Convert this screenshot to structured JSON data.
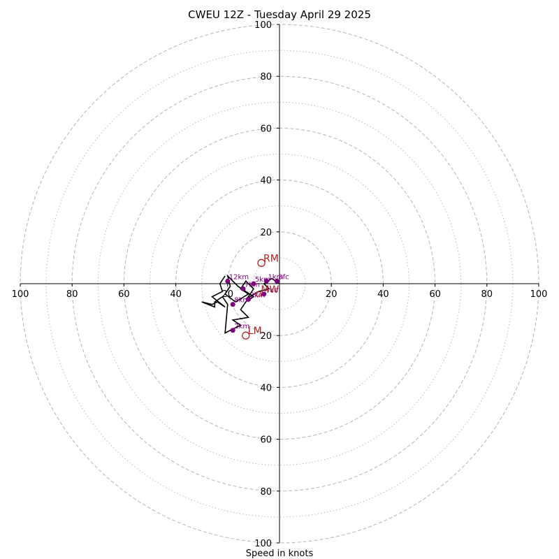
{
  "chart_data": {
    "type": "scatter",
    "subtype": "hodograph",
    "title": "CWEU 12Z - Tuesday April 29 2025",
    "xlabel": "Speed in knots",
    "range": [
      -100,
      100
    ],
    "major_rings": [
      20,
      40,
      60,
      80,
      100
    ],
    "minor_rings": [
      10,
      30,
      50,
      70,
      90
    ],
    "x_tick_labels": [
      "100",
      "80",
      "60",
      "40",
      "20",
      "20",
      "40",
      "60",
      "80",
      "100"
    ],
    "y_tick_labels": [
      "100",
      "80",
      "60",
      "40",
      "20",
      "20",
      "40",
      "60",
      "80",
      "100"
    ],
    "x_ticks": [
      -100,
      -80,
      -60,
      -40,
      -20,
      20,
      40,
      60,
      80,
      100
    ],
    "y_ticks": [
      100,
      80,
      60,
      40,
      20,
      -20,
      -40,
      -60,
      -80,
      -100
    ],
    "grid": true,
    "hodograph_trace": [
      [
        0,
        0
      ],
      [
        -3,
        2
      ],
      [
        -6,
        0
      ],
      [
        -4,
        -2
      ],
      [
        -8,
        -3
      ],
      [
        -13,
        -6
      ],
      [
        -12,
        -5
      ],
      [
        -10,
        -2
      ],
      [
        -13,
        1
      ],
      [
        -15,
        -2
      ],
      [
        -12,
        -4
      ],
      [
        -17,
        -7
      ],
      [
        -21,
        -4
      ],
      [
        -19,
        -1
      ],
      [
        -20,
        3
      ],
      [
        -16,
        -1
      ],
      [
        -10,
        -5
      ],
      [
        -13,
        -7
      ],
      [
        -15,
        -10
      ],
      [
        -12,
        -13
      ],
      [
        -18,
        -14
      ],
      [
        -15,
        -16
      ],
      [
        -21,
        -19
      ],
      [
        -20,
        -8
      ],
      [
        -22,
        -5
      ],
      [
        -25,
        -7
      ],
      [
        -25,
        -9
      ],
      [
        -30,
        -7
      ],
      [
        -26,
        -8
      ],
      [
        -24,
        -7
      ],
      [
        -21,
        -9
      ],
      [
        -26,
        -5
      ],
      [
        -22,
        -3
      ],
      [
        -23,
        0
      ],
      [
        -21,
        3
      ]
    ],
    "height_markers": [
      {
        "label": "Sfc",
        "u": -1,
        "v": 1
      },
      {
        "label": "1km",
        "u": -5,
        "v": 1
      },
      {
        "label": "2km",
        "u": -18,
        "v": -18
      },
      {
        "label": "3km",
        "u": -12,
        "v": -6
      },
      {
        "label": "4km",
        "u": -6,
        "v": -4
      },
      {
        "label": "5km",
        "u": -10,
        "v": 0
      },
      {
        "label": "7km",
        "u": -14,
        "v": -2
      },
      {
        "label": "8km",
        "u": -18,
        "v": -8
      },
      {
        "label": "12km",
        "u": -20,
        "v": 1
      }
    ],
    "storm_motions": [
      {
        "label": "RM",
        "u": -7,
        "v": 8
      },
      {
        "label": "LM",
        "u": -13,
        "v": -20
      },
      {
        "label": "MW",
        "u": -8,
        "v": -4
      }
    ],
    "colors": {
      "trace": "#000000",
      "height_markers": "#800080",
      "storm_motion": "#b22222",
      "grid": "#bbbbbb",
      "axes": "#000000"
    }
  }
}
